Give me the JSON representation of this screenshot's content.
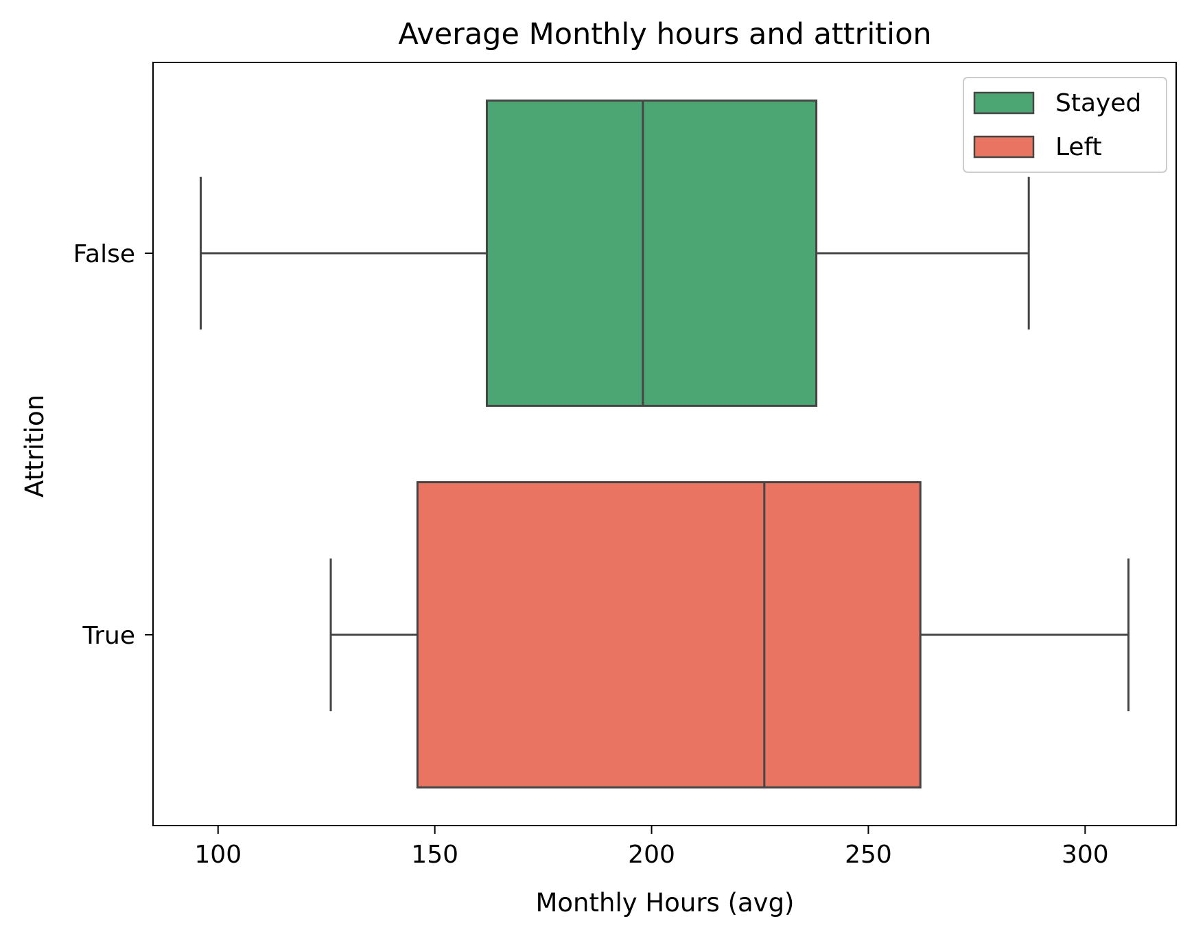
{
  "chart_data": {
    "type": "box",
    "orientation": "horizontal",
    "title": "Average Monthly hours and attrition",
    "xlabel": "Monthly Hours (avg)",
    "ylabel": "Attrition",
    "xlim": [
      85,
      321
    ],
    "xticks": [
      100,
      150,
      200,
      250,
      300
    ],
    "categories": [
      "False",
      "True"
    ],
    "grid": false,
    "legend_position": "top-right",
    "series": [
      {
        "name": "Stayed",
        "category": "False",
        "color": "#4ca674",
        "whisker_low": 96,
        "q1": 162,
        "median": 198,
        "q3": 238,
        "whisker_high": 287
      },
      {
        "name": "Left",
        "category": "True",
        "color": "#e87461",
        "whisker_low": 126,
        "q1": 146,
        "median": 226,
        "q3": 262,
        "whisker_high": 310
      }
    ],
    "line_color": "#454545"
  }
}
